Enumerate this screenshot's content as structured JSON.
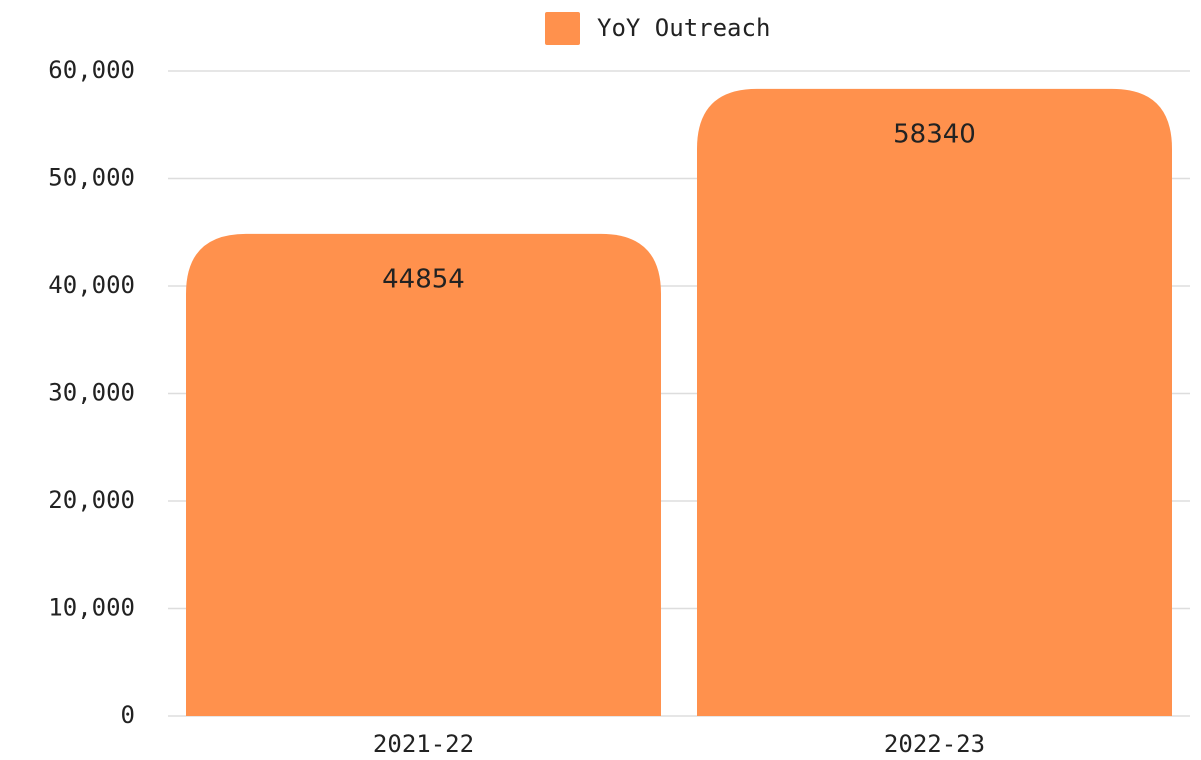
{
  "chart_data": {
    "type": "bar",
    "categories": [
      "2021-22",
      "2022-23"
    ],
    "series": [
      {
        "name": "YoY Outreach",
        "color": "#ff914d",
        "values": [
          44854,
          58340
        ]
      }
    ],
    "ylim": [
      0,
      60000
    ],
    "yticks": [
      0,
      {
        "value": 10000,
        "label": "10,000"
      },
      {
        "value": 20000,
        "label": "20,000"
      },
      {
        "value": 30000,
        "label": "30,000"
      },
      {
        "value": 40000,
        "label": "40,000"
      },
      {
        "value": 50000,
        "label": "50,000"
      },
      {
        "value": 60000,
        "label": "60,000"
      }
    ],
    "grid": true,
    "legend": "top"
  }
}
